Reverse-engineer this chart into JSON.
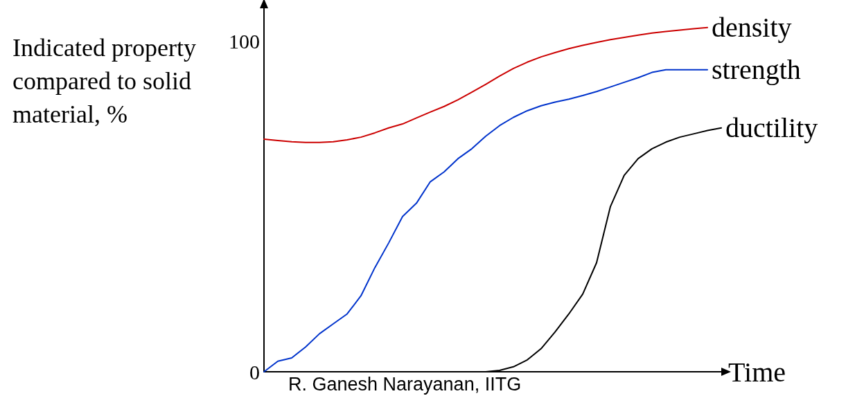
{
  "chart_data": {
    "type": "line",
    "ylabel": "Indicated property compared to solid material, %",
    "xlabel": "Time",
    "annotations": [
      "R. Ganesh Narayanan, IITG"
    ],
    "categories": [
      null,
      null,
      null,
      null,
      null,
      null,
      null,
      null,
      null,
      null,
      null,
      null,
      null,
      null,
      null,
      null,
      null,
      null,
      null,
      null,
      null,
      null,
      null,
      null,
      null,
      null,
      null,
      null,
      null,
      null,
      null,
      null,
      null,
      null
    ],
    "series": [
      {
        "name": "density",
        "color": "#cc0000",
        "values": [
          70.4,
          70,
          69.6,
          69.4,
          69.4,
          69.6,
          70.2,
          71,
          72.3,
          73.8,
          75,
          76.8,
          78.6,
          80.3,
          82.3,
          84.6,
          87,
          89.5,
          91.8,
          93.7,
          95.3,
          96.6,
          97.8,
          98.8,
          99.7,
          100.5,
          101.2,
          101.9,
          102.5,
          103,
          103.4,
          103.8,
          104.2,
          null
        ]
      },
      {
        "name": "strength",
        "color": "#0033cc",
        "values": [
          0,
          3.2,
          4.2,
          7.5,
          11.5,
          14.5,
          17.5,
          23,
          31.5,
          39,
          47,
          51,
          57.5,
          60.5,
          64.5,
          67.5,
          71.3,
          74.5,
          77,
          79,
          80.5,
          81.6,
          82.5,
          83.6,
          84.8,
          86.2,
          87.6,
          89,
          90.6,
          91.4,
          91.4,
          91.4,
          91.4,
          null
        ]
      },
      {
        "name": "ductility",
        "color": "#000000",
        "values": [
          null,
          null,
          null,
          null,
          null,
          null,
          null,
          null,
          null,
          null,
          null,
          null,
          null,
          null,
          null,
          0,
          0,
          0.4,
          1.5,
          3.6,
          7,
          12,
          17.5,
          23.5,
          33,
          50,
          59.5,
          64.5,
          67.5,
          69.5,
          71,
          72,
          73,
          73.8
        ]
      }
    ],
    "ylim": [
      0,
      110
    ],
    "yticks": [
      0,
      100
    ],
    "grid": false,
    "legend": false,
    "marker": "none",
    "line_style": "solid"
  }
}
